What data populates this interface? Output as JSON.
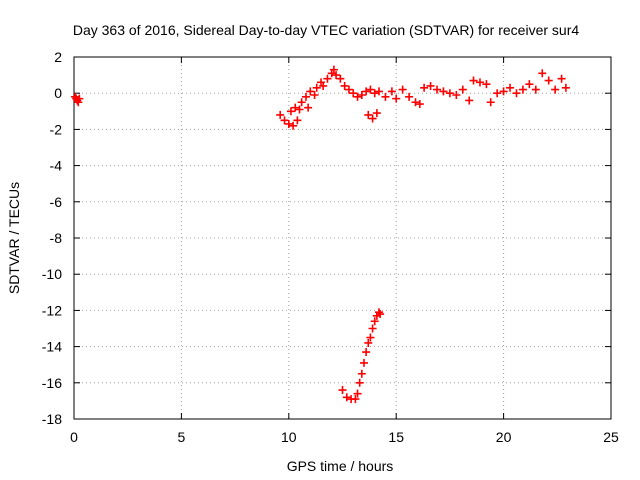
{
  "chart_data": {
    "type": "scatter",
    "title": "Day 363 of 2016, Sidereal Day-to-day VTEC variation (SDTVAR) for receiver sur4",
    "xlabel": "GPS time / hours",
    "ylabel": "SDTVAR / TECUs",
    "xlim": [
      0,
      25
    ],
    "ylim": [
      -18,
      2
    ],
    "xticks": [
      "0",
      "5",
      "10",
      "15",
      "20",
      "25"
    ],
    "yticks": [
      "2",
      "0",
      "-2",
      "-4",
      "-6",
      "-8",
      "-10",
      "-12",
      "-14",
      "-16",
      "-18"
    ],
    "grid": true,
    "marker": "plus",
    "series": [
      {
        "color": "#ff0000",
        "points": [
          [
            0.05,
            -0.2
          ],
          [
            0.1,
            -0.3
          ],
          [
            0.15,
            -0.4
          ],
          [
            0.2,
            -0.5
          ],
          [
            0.25,
            -0.3
          ],
          [
            9.6,
            -1.2
          ],
          [
            9.8,
            -1.5
          ],
          [
            10.0,
            -1.7
          ],
          [
            10.2,
            -1.8
          ],
          [
            10.4,
            -1.5
          ],
          [
            10.1,
            -1.0
          ],
          [
            10.3,
            -0.8
          ],
          [
            10.5,
            -0.9
          ],
          [
            10.6,
            -0.5
          ],
          [
            10.8,
            -0.2
          ],
          [
            10.9,
            -0.8
          ],
          [
            11.0,
            0.1
          ],
          [
            11.2,
            -0.1
          ],
          [
            11.3,
            0.3
          ],
          [
            11.5,
            0.6
          ],
          [
            11.6,
            0.4
          ],
          [
            11.8,
            0.8
          ],
          [
            12.0,
            1.1
          ],
          [
            12.1,
            1.3
          ],
          [
            12.2,
            1.0
          ],
          [
            12.4,
            0.8
          ],
          [
            12.6,
            0.4
          ],
          [
            12.8,
            0.2
          ],
          [
            13.0,
            0.0
          ],
          [
            13.2,
            -0.2
          ],
          [
            13.4,
            -0.1
          ],
          [
            13.6,
            0.1
          ],
          [
            13.8,
            0.2
          ],
          [
            14.0,
            0.0
          ],
          [
            14.2,
            0.1
          ],
          [
            14.5,
            -0.2
          ],
          [
            14.8,
            0.1
          ],
          [
            15.0,
            -0.3
          ],
          [
            13.7,
            -1.2
          ],
          [
            13.9,
            -1.4
          ],
          [
            14.1,
            -1.1
          ],
          [
            15.3,
            0.2
          ],
          [
            15.6,
            -0.2
          ],
          [
            15.9,
            -0.5
          ],
          [
            16.1,
            -0.6
          ],
          [
            16.3,
            0.3
          ],
          [
            16.6,
            0.4
          ],
          [
            16.9,
            0.2
          ],
          [
            17.2,
            0.1
          ],
          [
            17.5,
            0.0
          ],
          [
            17.8,
            -0.1
          ],
          [
            18.1,
            0.2
          ],
          [
            18.4,
            -0.4
          ],
          [
            18.6,
            0.7
          ],
          [
            18.9,
            0.6
          ],
          [
            19.2,
            0.5
          ],
          [
            19.4,
            -0.5
          ],
          [
            19.7,
            0.0
          ],
          [
            20.0,
            0.1
          ],
          [
            20.3,
            0.3
          ],
          [
            20.6,
            0.0
          ],
          [
            20.9,
            0.2
          ],
          [
            21.2,
            0.5
          ],
          [
            21.5,
            0.2
          ],
          [
            21.8,
            1.1
          ],
          [
            22.1,
            0.7
          ],
          [
            22.4,
            0.2
          ],
          [
            22.7,
            0.8
          ],
          [
            22.9,
            0.3
          ],
          [
            12.5,
            -16.4
          ],
          [
            12.7,
            -16.8
          ],
          [
            12.9,
            -16.9
          ],
          [
            13.1,
            -16.9
          ],
          [
            13.2,
            -16.6
          ],
          [
            13.3,
            -16.0
          ],
          [
            13.4,
            -15.5
          ],
          [
            13.5,
            -14.9
          ],
          [
            13.6,
            -14.3
          ],
          [
            13.7,
            -13.8
          ],
          [
            13.8,
            -13.5
          ],
          [
            13.9,
            -13.0
          ],
          [
            14.0,
            -12.6
          ],
          [
            14.1,
            -12.3
          ],
          [
            14.2,
            -12.1
          ],
          [
            14.25,
            -12.2
          ]
        ]
      }
    ]
  }
}
